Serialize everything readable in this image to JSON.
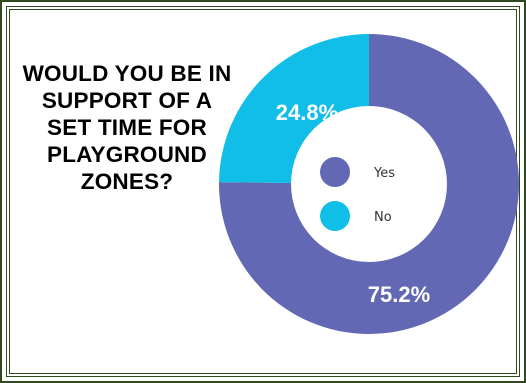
{
  "question": "WOULD YOU BE IN SUPPORT OF A SET TIME FOR PLAYGROUND ZONES?",
  "colors": {
    "yes": "#6268B3",
    "no": "#10BEE8",
    "frame": "#2f4a1e"
  },
  "chart_data": {
    "type": "pie",
    "style": "donut",
    "categories": [
      "Yes",
      "No"
    ],
    "values": [
      75.2,
      24.8
    ],
    "data_labels": [
      "75.2%",
      "24.8%"
    ],
    "legend": {
      "position": "center",
      "entries": [
        "Yes",
        "No"
      ]
    }
  }
}
